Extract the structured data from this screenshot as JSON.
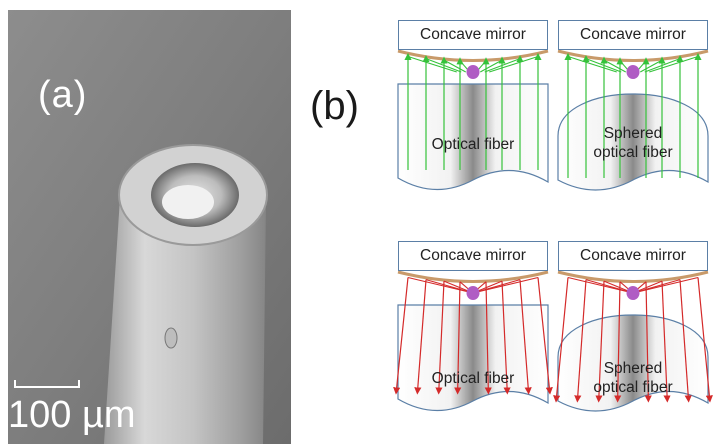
{
  "panel_a": {
    "label": "(a)",
    "scale_bar_text": "100 µm"
  },
  "panel_b": {
    "label": "(b)",
    "cells": [
      {
        "mirror_label": "Concave mirror",
        "fiber_label": "Optical fiber",
        "fiber_shape": "flat",
        "ray_color": "#35c23a"
      },
      {
        "mirror_label": "Concave mirror",
        "fiber_label": "Sphered\noptical fiber",
        "fiber_shape": "sphered",
        "ray_color": "#35c23a"
      },
      {
        "mirror_label": "Concave mirror",
        "fiber_label": "Optical fiber",
        "fiber_shape": "flat",
        "ray_color": "#d42a2a"
      },
      {
        "mirror_label": "Concave mirror",
        "fiber_label": "Sphered\noptical fiber",
        "fiber_shape": "sphered",
        "ray_color": "#d42a2a"
      }
    ]
  },
  "colors": {
    "mirror_arc": "#c89a6a",
    "fiber_outline": "#5b7fa6",
    "emitter": "#b05cc4"
  }
}
